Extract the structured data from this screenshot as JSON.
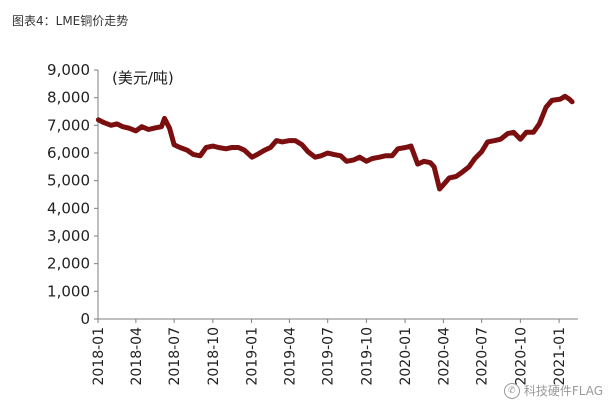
{
  "caption": "图表4：LME铜价走势",
  "watermark": {
    "text": "科技硬件FLAG",
    "icon": "wechat-icon"
  },
  "colors": {
    "series": "#7b0f0f",
    "axis": "#7f7f7f",
    "text": "#222222"
  },
  "chart_data": {
    "type": "line",
    "title": "",
    "unit_label": "(美元/吨)",
    "xlabel": "",
    "ylabel": "",
    "ylim": [
      0,
      9000
    ],
    "yticks": [
      {
        "value": 0,
        "label": "0"
      },
      {
        "value": 1000,
        "label": "1,000"
      },
      {
        "value": 2000,
        "label": "2,000"
      },
      {
        "value": 3000,
        "label": "3,000"
      },
      {
        "value": 4000,
        "label": "4,000"
      },
      {
        "value": 5000,
        "label": "5,000"
      },
      {
        "value": 6000,
        "label": "6,000"
      },
      {
        "value": 7000,
        "label": "7,000"
      },
      {
        "value": 8000,
        "label": "8,000"
      },
      {
        "value": 9000,
        "label": "9,000"
      }
    ],
    "xticks": [
      "2018-01",
      "2018-04",
      "2018-07",
      "2018-10",
      "2019-01",
      "2019-04",
      "2019-07",
      "2019-10",
      "2020-01",
      "2020-04",
      "2020-07",
      "2020-10",
      "2021-01"
    ],
    "xlim": [
      "2018-01-01",
      "2021-02-15"
    ],
    "grid": false,
    "series": [
      {
        "name": "",
        "points": [
          [
            "2018-01-02",
            7200
          ],
          [
            "2018-01-15",
            7100
          ],
          [
            "2018-02-01",
            7000
          ],
          [
            "2018-02-15",
            7050
          ],
          [
            "2018-03-01",
            6950
          ],
          [
            "2018-03-15",
            6900
          ],
          [
            "2018-04-01",
            6800
          ],
          [
            "2018-04-15",
            6950
          ],
          [
            "2018-05-01",
            6850
          ],
          [
            "2018-05-15",
            6900
          ],
          [
            "2018-06-01",
            6950
          ],
          [
            "2018-06-08",
            7250
          ],
          [
            "2018-06-20",
            6900
          ],
          [
            "2018-07-01",
            6300
          ],
          [
            "2018-07-15",
            6200
          ],
          [
            "2018-08-01",
            6100
          ],
          [
            "2018-08-15",
            5950
          ],
          [
            "2018-09-01",
            5900
          ],
          [
            "2018-09-15",
            6200
          ],
          [
            "2018-10-01",
            6250
          ],
          [
            "2018-10-15",
            6200
          ],
          [
            "2018-11-01",
            6150
          ],
          [
            "2018-11-15",
            6200
          ],
          [
            "2018-12-01",
            6200
          ],
          [
            "2018-12-15",
            6100
          ],
          [
            "2019-01-02",
            5850
          ],
          [
            "2019-01-15",
            5950
          ],
          [
            "2019-02-01",
            6100
          ],
          [
            "2019-02-15",
            6200
          ],
          [
            "2019-03-01",
            6450
          ],
          [
            "2019-03-15",
            6400
          ],
          [
            "2019-04-01",
            6450
          ],
          [
            "2019-04-15",
            6450
          ],
          [
            "2019-05-01",
            6300
          ],
          [
            "2019-05-15",
            6050
          ],
          [
            "2019-06-01",
            5850
          ],
          [
            "2019-06-15",
            5900
          ],
          [
            "2019-07-01",
            6000
          ],
          [
            "2019-07-15",
            5950
          ],
          [
            "2019-08-01",
            5900
          ],
          [
            "2019-08-15",
            5700
          ],
          [
            "2019-09-01",
            5750
          ],
          [
            "2019-09-15",
            5850
          ],
          [
            "2019-10-01",
            5700
          ],
          [
            "2019-10-15",
            5800
          ],
          [
            "2019-11-01",
            5850
          ],
          [
            "2019-11-15",
            5900
          ],
          [
            "2019-12-01",
            5900
          ],
          [
            "2019-12-15",
            6150
          ],
          [
            "2020-01-02",
            6200
          ],
          [
            "2020-01-15",
            6250
          ],
          [
            "2020-01-31",
            5600
          ],
          [
            "2020-02-15",
            5700
          ],
          [
            "2020-03-01",
            5650
          ],
          [
            "2020-03-10",
            5500
          ],
          [
            "2020-03-23",
            4700
          ],
          [
            "2020-04-01",
            4850
          ],
          [
            "2020-04-15",
            5100
          ],
          [
            "2020-05-01",
            5150
          ],
          [
            "2020-05-15",
            5300
          ],
          [
            "2020-06-01",
            5500
          ],
          [
            "2020-06-15",
            5800
          ],
          [
            "2020-07-01",
            6050
          ],
          [
            "2020-07-15",
            6400
          ],
          [
            "2020-08-01",
            6450
          ],
          [
            "2020-08-15",
            6500
          ],
          [
            "2020-09-01",
            6700
          ],
          [
            "2020-09-15",
            6750
          ],
          [
            "2020-10-01",
            6500
          ],
          [
            "2020-10-15",
            6750
          ],
          [
            "2020-11-01",
            6750
          ],
          [
            "2020-11-15",
            7050
          ],
          [
            "2020-12-01",
            7650
          ],
          [
            "2020-12-15",
            7900
          ],
          [
            "2021-01-04",
            7950
          ],
          [
            "2021-01-15",
            8050
          ],
          [
            "2021-01-25",
            7950
          ],
          [
            "2021-02-01",
            7850
          ]
        ]
      }
    ]
  }
}
